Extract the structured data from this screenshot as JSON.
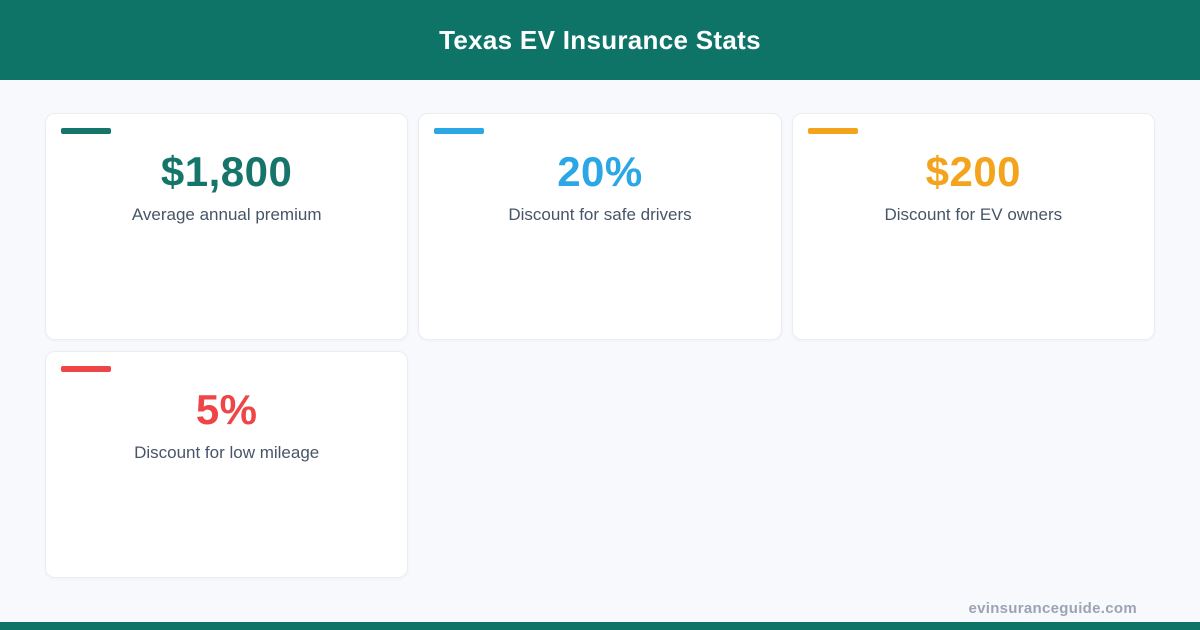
{
  "header": {
    "title": "Texas EV Insurance Stats",
    "bg_color": "#0e7468"
  },
  "stats": [
    {
      "value": "$1,800",
      "label": "Average annual premium",
      "accent": "#15756a"
    },
    {
      "value": "20%",
      "label": "Discount for safe drivers",
      "accent": "#2ba7e5"
    },
    {
      "value": "$200",
      "label": "Discount for EV owners",
      "accent": "#f4a41c"
    },
    {
      "value": "5%",
      "label": "Discount for low mileage",
      "accent": "#ee4547"
    }
  ],
  "footer": {
    "site": "evinsuranceguide.com"
  },
  "colors": {
    "page_bg": "#f7f9fc",
    "bottom_bar": "#0e7468",
    "label_text": "#475569",
    "footer_text": "#9aa4b2"
  },
  "chart_data": {
    "type": "table",
    "title": "Texas EV Insurance Stats",
    "categories": [
      "Average annual premium",
      "Discount for safe drivers",
      "Discount for EV owners",
      "Discount for low mileage"
    ],
    "values": [
      "$1,800",
      "20%",
      "$200",
      "5%"
    ],
    "numeric_values": [
      1800,
      20,
      200,
      5
    ],
    "units": [
      "USD",
      "percent",
      "USD",
      "percent"
    ]
  }
}
